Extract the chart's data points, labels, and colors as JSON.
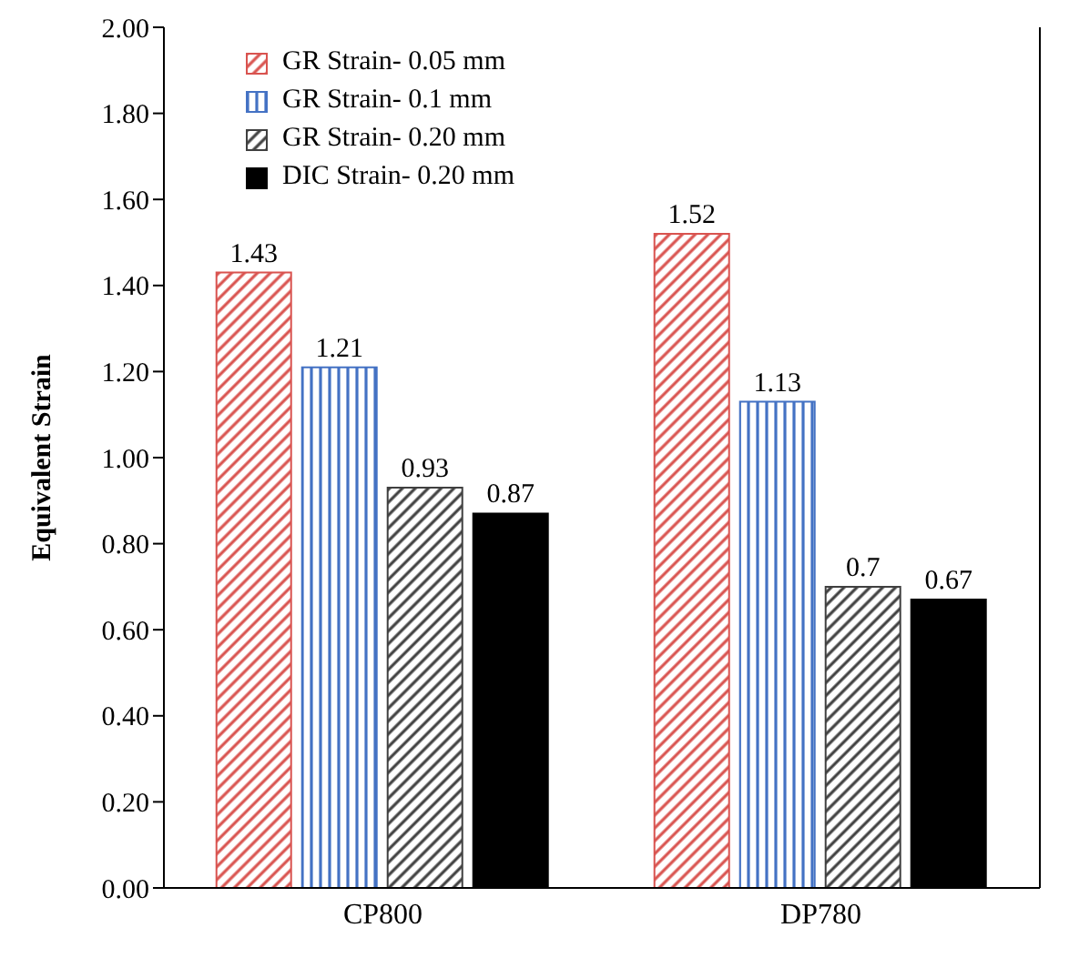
{
  "chart_data": {
    "type": "bar",
    "ylabel": "Equivalent Strain",
    "categories": [
      "CP800",
      "DP780"
    ],
    "series": [
      {
        "name": "GR Strain- 0.05 mm",
        "color": "#d9534f",
        "values": [
          1.43,
          1.52
        ]
      },
      {
        "name": "GR Strain- 0.1 mm",
        "color": "#4472c4",
        "values": [
          1.21,
          1.13
        ]
      },
      {
        "name": "GR Strain- 0.20 mm",
        "color": "#404040",
        "values": [
          0.93,
          0.7
        ]
      },
      {
        "name": "DIC Strain- 0.20 mm",
        "color": "#000000",
        "values": [
          0.87,
          0.67
        ]
      }
    ],
    "ylim": [
      0,
      2
    ],
    "yticks": [
      {
        "value": 0,
        "label": "0.00"
      },
      {
        "value": 0.2,
        "label": "0.20"
      },
      {
        "value": 0.4,
        "label": "0.40"
      },
      {
        "value": 0.6,
        "label": "0.60"
      },
      {
        "value": 0.8,
        "label": "0.80"
      },
      {
        "value": 1,
        "label": "1.00"
      },
      {
        "value": 1.2,
        "label": "1.20"
      },
      {
        "value": 1.4,
        "label": "1.40"
      },
      {
        "value": 1.6,
        "label": "1.60"
      },
      {
        "value": 1.8,
        "label": "1.80"
      },
      {
        "value": 2,
        "label": "2.00"
      }
    ],
    "data_labels": true,
    "legend": "top left",
    "grid": false
  }
}
